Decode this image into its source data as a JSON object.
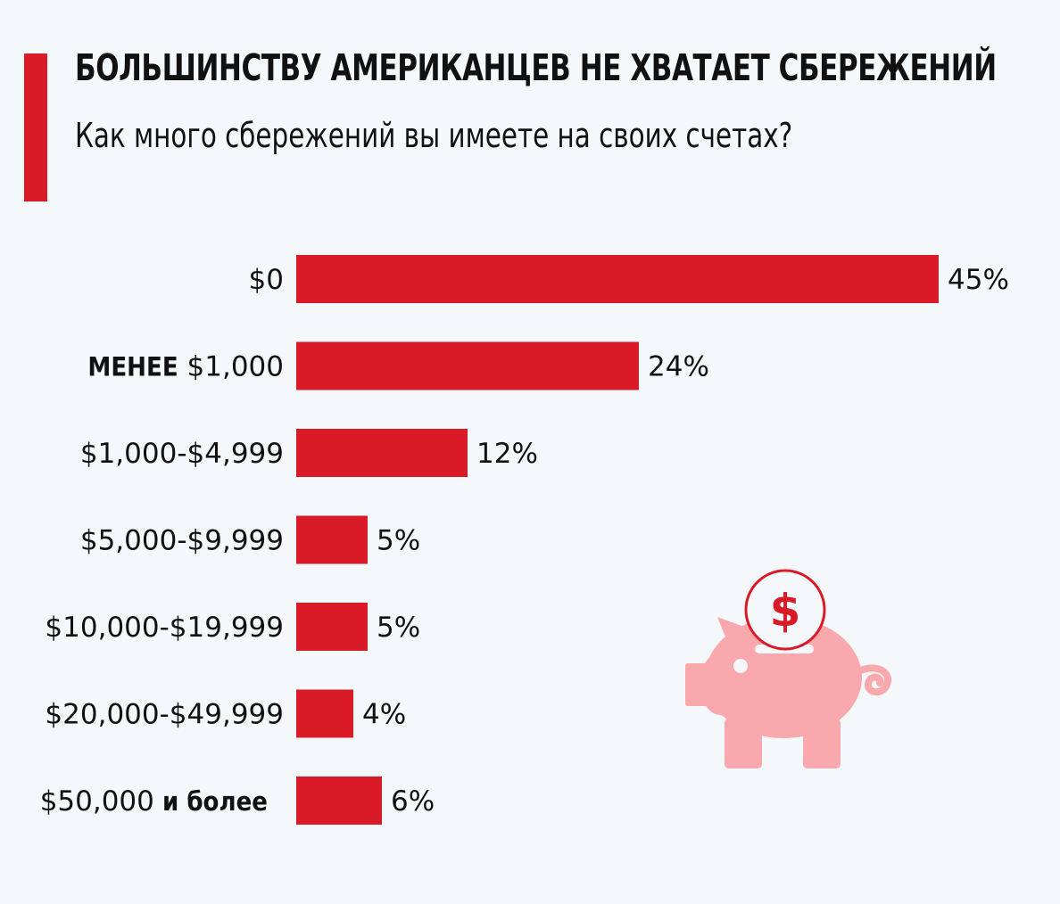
{
  "colors": {
    "accent": "#d81b27",
    "piggy": "#f9a9ad",
    "background": "#f5f8fb"
  },
  "header": {
    "title": "БОЛЬШИНСТВУ АМЕРИКАНЦЕВ НЕ ХВАТАЕТ СБЕРЕЖЕНИЙ",
    "subtitle": "Как много сбережений вы имеете на своих счетах?"
  },
  "illustration": {
    "icon": "piggy-bank-icon",
    "coin_symbol": "$"
  },
  "chart_data": {
    "type": "bar",
    "orientation": "horizontal",
    "title": "БОЛЬШИНСТВУ АМЕРИКАНЦЕВ НЕ ХВАТАЕТ СБЕРЕЖЕНИЙ",
    "subtitle": "Как много сбережений вы имеете на своих счетах?",
    "categories": [
      {
        "parts": [
          {
            "text": "$0",
            "bold": false
          }
        ]
      },
      {
        "parts": [
          {
            "text": "МЕНЕЕ",
            "bold": true
          },
          {
            "text": "$1,000",
            "bold": false
          }
        ]
      },
      {
        "parts": [
          {
            "text": "$1,000-$4,999",
            "bold": false
          }
        ]
      },
      {
        "parts": [
          {
            "text": "$5,000-$9,999",
            "bold": false
          }
        ]
      },
      {
        "parts": [
          {
            "text": "$10,000-$19,999",
            "bold": false
          }
        ]
      },
      {
        "parts": [
          {
            "text": "$20,000-$49,999",
            "bold": false
          }
        ]
      },
      {
        "parts": [
          {
            "text": "$50,000",
            "bold": false
          },
          {
            "text": "и более",
            "bold": true
          }
        ]
      }
    ],
    "values": [
      45,
      24,
      12,
      5,
      5,
      4,
      6
    ],
    "value_labels": [
      "45%",
      "24%",
      "12%",
      "5%",
      "5%",
      "4%",
      "6%"
    ],
    "unit": "%",
    "xlim": [
      0,
      45
    ],
    "grid": false,
    "legend": "none"
  }
}
